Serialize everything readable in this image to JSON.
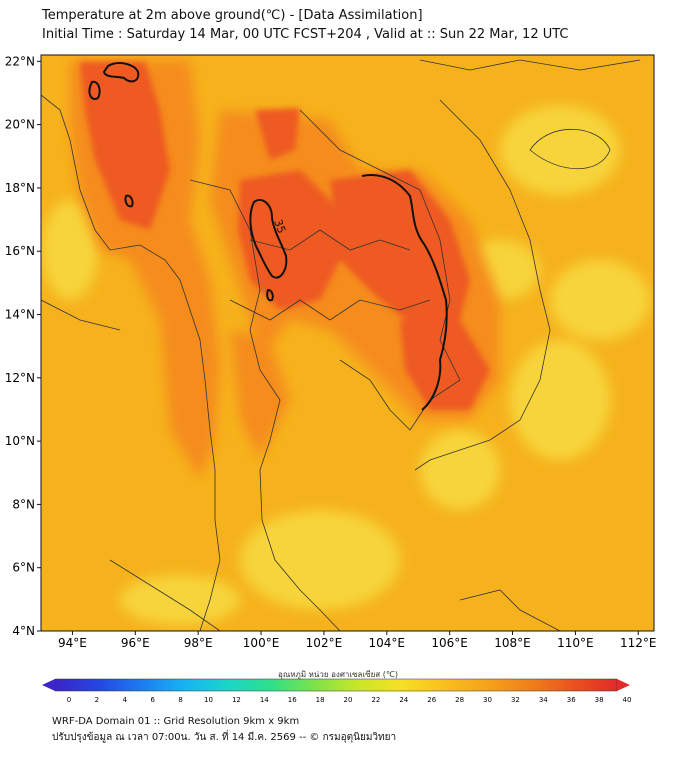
{
  "title": {
    "line1": "Temperature at 2m above ground(℃) - [Data Assimilation]",
    "line2": "Initial Time : Saturday 14 Mar, 00 UTC FCST+204 , Valid at :: Sun 22 Mar, 12 UTC"
  },
  "map": {
    "lon_labels": [
      "94°E",
      "96°E",
      "98°E",
      "100°E",
      "102°E",
      "104°E",
      "106°E",
      "108°E",
      "110°E",
      "112°E"
    ],
    "lat_labels": [
      "22°N",
      "20°N",
      "18°N",
      "16°N",
      "14°N",
      "12°N",
      "10°N",
      "8°N",
      "6°N",
      "4°N"
    ],
    "contour_label": "35",
    "background_color": "#f6b21c",
    "hot_color": "#ee5a22",
    "warm_color": "#f58c1e",
    "cool_color": "#f7d43a",
    "land_border_color": "#333333"
  },
  "colorbar": {
    "title": "อุณหภูมิ หน่วย องศาเซลเซียส (℃)",
    "ticks": [
      "0",
      "2",
      "4",
      "6",
      "8",
      "10",
      "12",
      "14",
      "16",
      "18",
      "20",
      "22",
      "24",
      "26",
      "28",
      "30",
      "32",
      "34",
      "36",
      "38",
      "40"
    ],
    "colors": [
      "#3b24c8",
      "#2546e0",
      "#1d7cf0",
      "#16b4f2",
      "#1ad6c8",
      "#2ee08a",
      "#7ee24a",
      "#c9e628",
      "#f6e023",
      "#f8c01d",
      "#f6a21a",
      "#f07f1a",
      "#e9521f",
      "#e22a2a"
    ]
  },
  "footer": {
    "line1": "WRF-DA Domain 01 :: Grid Resolution 9km x 9km",
    "line2": "ปรับปรุงข้อมูล ณ เวลา 07:00น. วัน ส. ที่ 14 มี.ค. 2569 -- © กรมอุตุนิยมวิทยา"
  }
}
